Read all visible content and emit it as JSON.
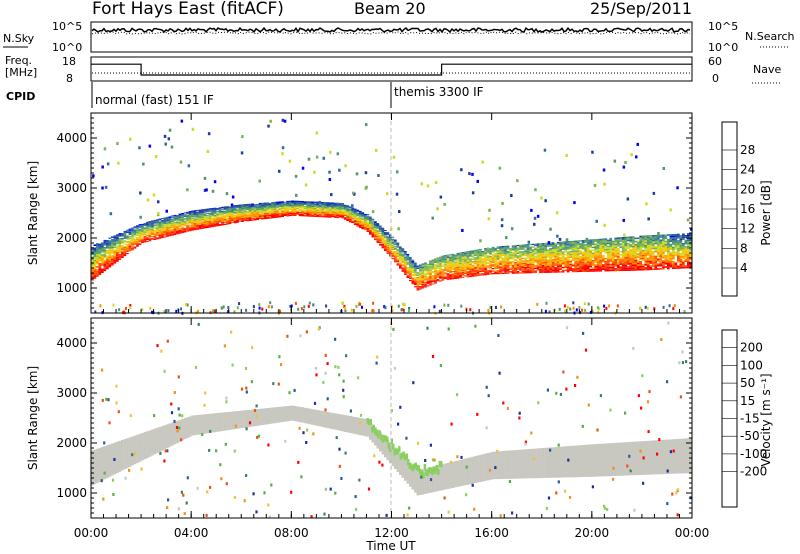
{
  "header": {
    "station": "Fort Hays East (fitACF)",
    "beam": "Beam 20",
    "date": "25/Sep/2011"
  },
  "noise_panel": {
    "left_label": "N.Sky",
    "right_label": "N.Search",
    "left_ticks": [
      "10^5",
      "10^0"
    ],
    "right_ticks": [
      "10^5",
      "10^0"
    ]
  },
  "freq_panel": {
    "left_label_1": "Freq.",
    "left_label_2": "[MHz]",
    "right_label": "Nave",
    "left_ticks": [
      "18",
      "8"
    ],
    "right_ticks": [
      "60",
      "0"
    ],
    "freq_steps": [
      {
        "t0": 0.0,
        "t1": 2.0,
        "mhz": 15
      },
      {
        "t0": 2.0,
        "t1": 14.0,
        "mhz": 10.5
      },
      {
        "t0": 14.0,
        "t1": 24.0,
        "mhz": 15
      }
    ]
  },
  "cpid": {
    "label": "CPID",
    "modes": [
      {
        "start_hour": 0,
        "name": "normal (fast) 151 IF"
      },
      {
        "start_hour": 12,
        "name": "themis 3300 IF"
      }
    ]
  },
  "power_scale": {
    "title": "Power [dB]",
    "ticks": [
      "28",
      "24",
      "20",
      "16",
      "12",
      "8",
      "4"
    ],
    "colors": [
      "#ff0000",
      "#ff4a00",
      "#ff8c00",
      "#ffc000",
      "#c8dc28",
      "#78b450",
      "#50966e",
      "#2e6e9e",
      "#1e3ca0",
      "#0000ff"
    ]
  },
  "velocity_scale": {
    "title": "Velocity [m s⁻¹]",
    "ticks": [
      "200",
      "100",
      "50",
      "15",
      "-15",
      "-50",
      "-100",
      "-200"
    ],
    "colors": [
      "#1a2fa0",
      "#2a5a9a",
      "#3c8060",
      "#55b040",
      "#8ad060",
      "#c8c8c0",
      "#f0c040",
      "#f09020",
      "#f05010",
      "#ff0000"
    ]
  },
  "axes": {
    "ylabel": "Slant Range [km]",
    "xlabel": "Time UT",
    "yticks": [
      "4000",
      "3000",
      "2000",
      "1000"
    ],
    "xticks": [
      "00:00",
      "04:00",
      "08:00",
      "12:00",
      "16:00",
      "20:00",
      "00:00"
    ]
  },
  "chart_data": [
    {
      "type": "heatmap",
      "title": "",
      "quantity": "Power [dB]",
      "xlabel": "Time UT",
      "ylabel": "Slant Range [km]",
      "xlim": [
        0,
        24
      ],
      "ylim": [
        500,
        4500
      ],
      "clim": [
        0,
        30
      ],
      "main_echo_band": [
        {
          "hour": 0,
          "center_km": 1500,
          "width_km": 700
        },
        {
          "hour": 2,
          "center_km": 2100,
          "width_km": 400
        },
        {
          "hour": 4,
          "center_km": 2350,
          "width_km": 400
        },
        {
          "hour": 6,
          "center_km": 2500,
          "width_km": 350
        },
        {
          "hour": 8,
          "center_km": 2600,
          "width_km": 300
        },
        {
          "hour": 10,
          "center_km": 2550,
          "width_km": 300
        },
        {
          "hour": 11,
          "center_km": 2300,
          "width_km": 350
        },
        {
          "hour": 12,
          "center_km": 1800,
          "width_km": 450
        },
        {
          "hour": 13,
          "center_km": 1200,
          "width_km": 500
        },
        {
          "hour": 14,
          "center_km": 1400,
          "width_km": 500
        },
        {
          "hour": 16,
          "center_km": 1550,
          "width_km": 550
        },
        {
          "hour": 18,
          "center_km": 1600,
          "width_km": 600
        },
        {
          "hour": 20,
          "center_km": 1650,
          "width_km": 650
        },
        {
          "hour": 22,
          "center_km": 1700,
          "width_km": 700
        },
        {
          "hour": 24,
          "center_km": 1750,
          "width_km": 700
        }
      ],
      "x": [
        0,
        2,
        4,
        6,
        8,
        10,
        11,
        12,
        13,
        14,
        16,
        18,
        20,
        22,
        24
      ]
    },
    {
      "type": "heatmap",
      "title": "",
      "quantity": "Velocity [m s⁻¹]",
      "xlabel": "Time UT",
      "ylabel": "Slant Range [km]",
      "xlim": [
        0,
        24
      ],
      "ylim": [
        500,
        4500
      ],
      "clim": [
        -200,
        200
      ],
      "ground_scatter_band": [
        {
          "hour": 0,
          "center_km": 1500,
          "width_km": 700
        },
        {
          "hour": 4,
          "center_km": 2350,
          "width_km": 400
        },
        {
          "hour": 8,
          "center_km": 2600,
          "width_km": 300
        },
        {
          "hour": 11,
          "center_km": 2300,
          "width_km": 350
        },
        {
          "hour": 13,
          "center_km": 1200,
          "width_km": 500
        },
        {
          "hour": 16,
          "center_km": 1550,
          "width_km": 550
        },
        {
          "hour": 20,
          "center_km": 1650,
          "width_km": 650
        },
        {
          "hour": 24,
          "center_km": 1750,
          "width_km": 700
        }
      ]
    }
  ]
}
